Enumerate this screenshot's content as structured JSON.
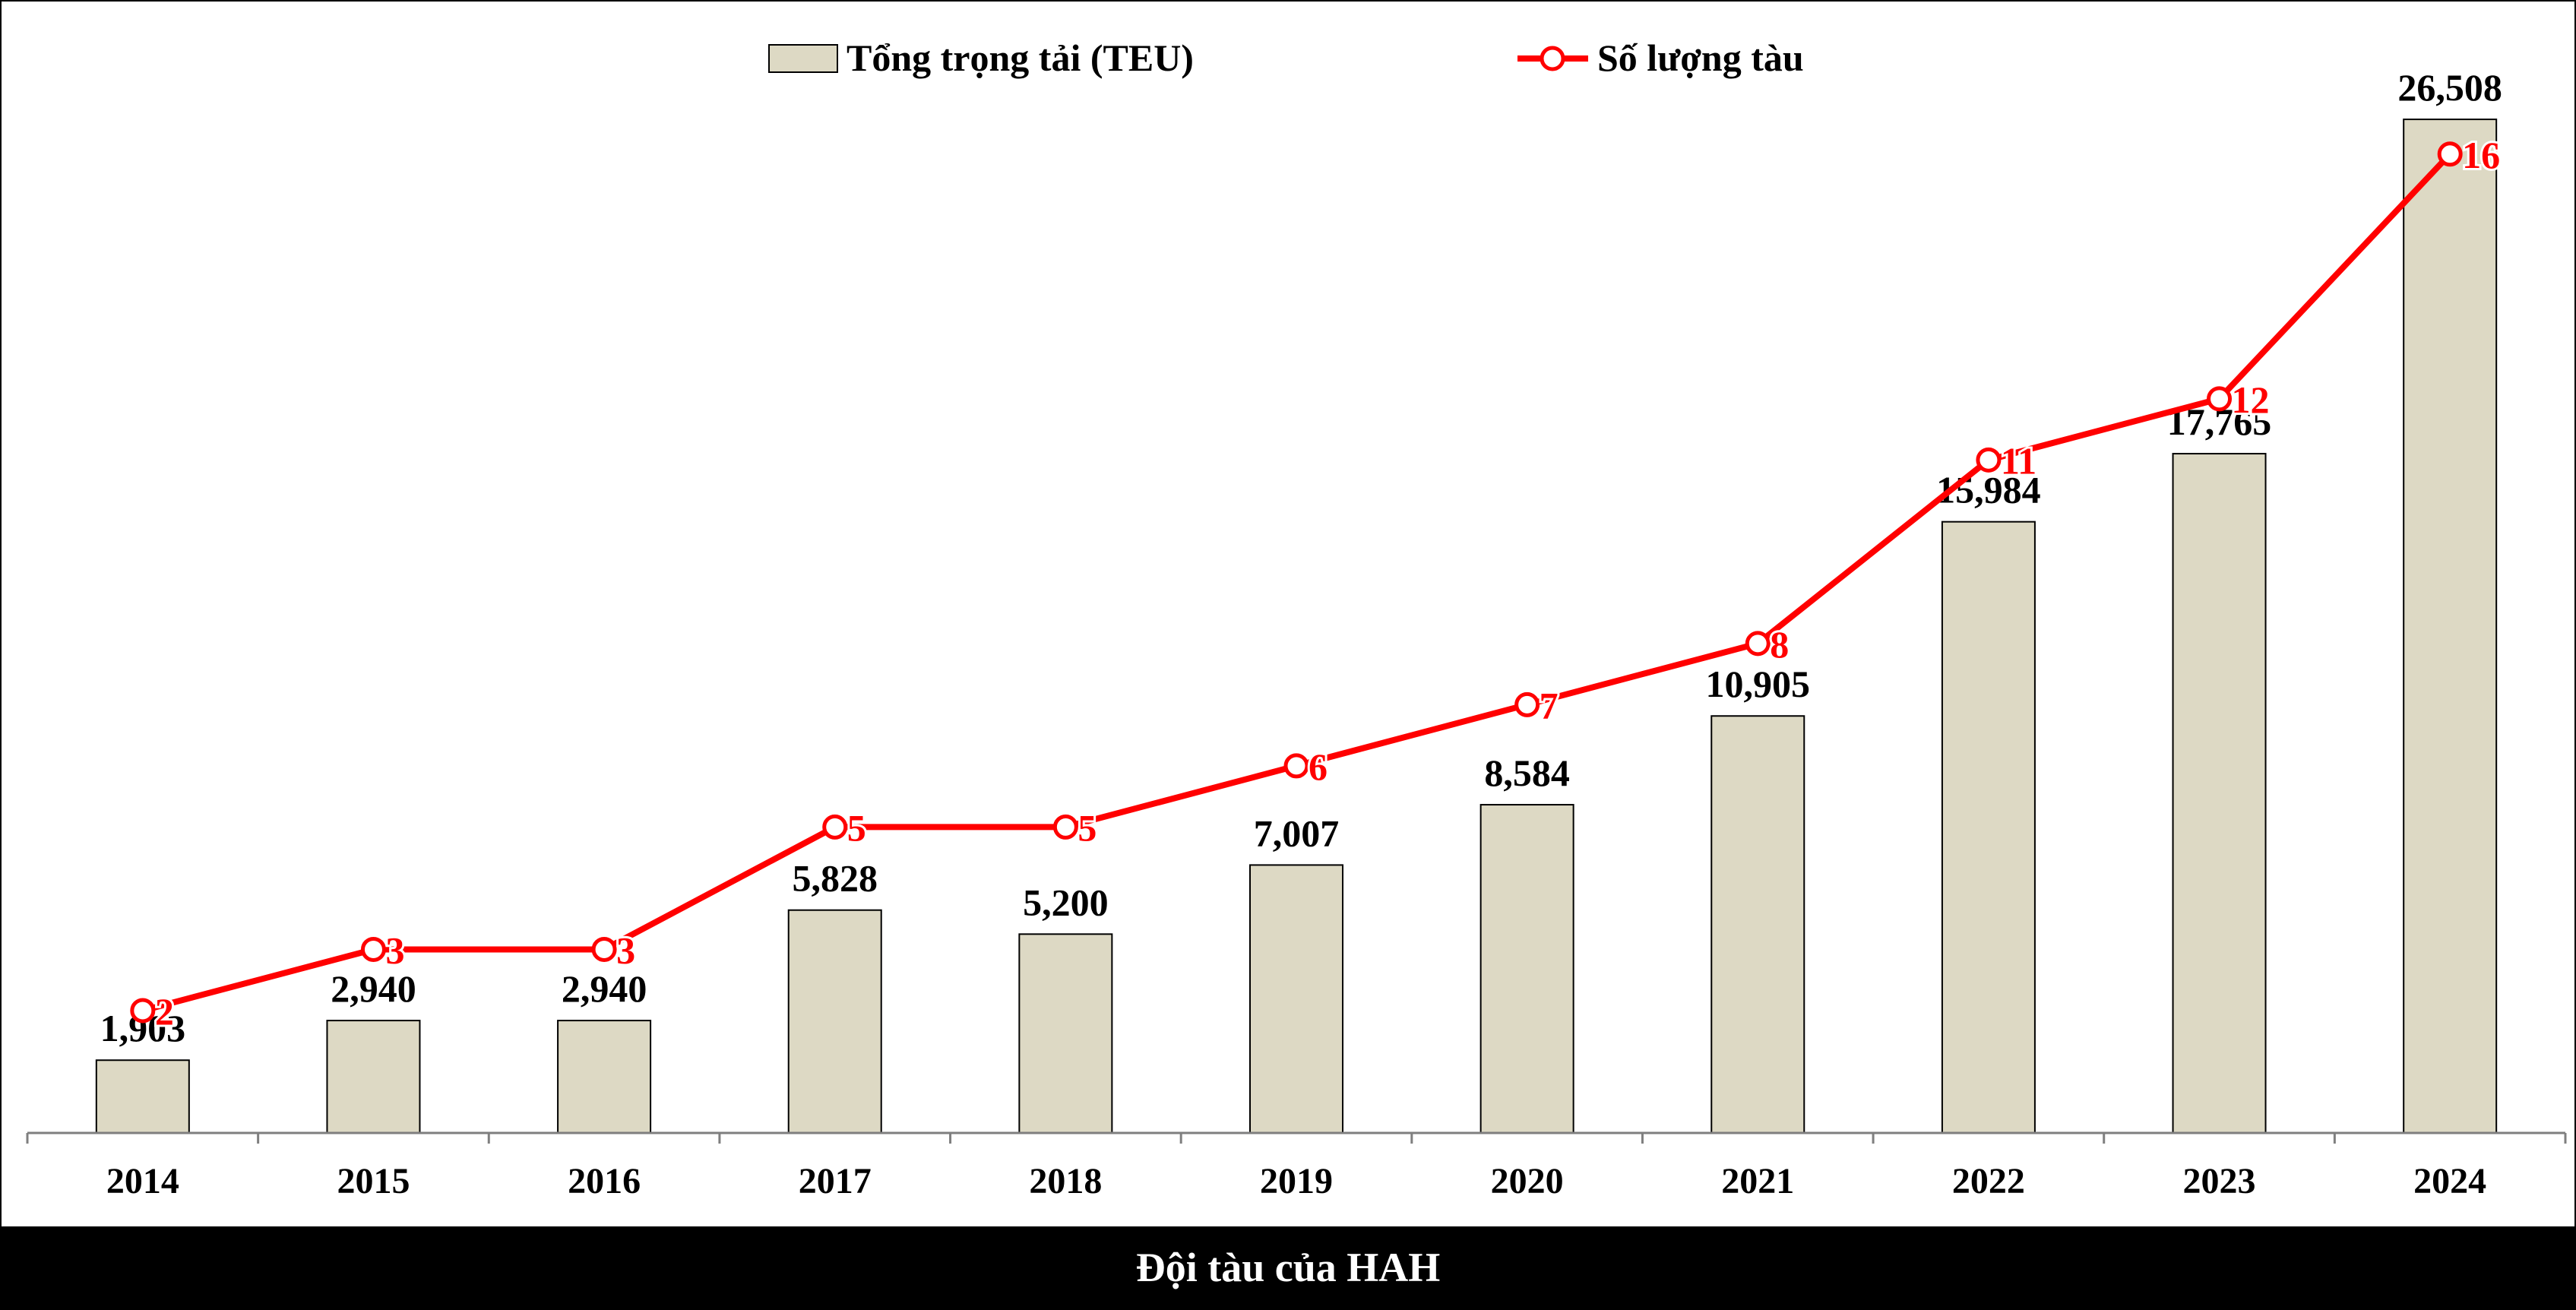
{
  "chart_data": {
    "type": "bar",
    "categories": [
      "2014",
      "2015",
      "2016",
      "2017",
      "2018",
      "2019",
      "2020",
      "2021",
      "2022",
      "2023",
      "2024"
    ],
    "series": [
      {
        "name": "Tổng trọng tải (TEU)",
        "type": "bar",
        "values": [
          1903,
          2940,
          2940,
          5828,
          5200,
          7007,
          8584,
          10905,
          15984,
          17765,
          26508
        ],
        "labels": [
          "1,903",
          "2,940",
          "2,940",
          "5,828",
          "5,200",
          "7,007",
          "8,584",
          "10,905",
          "15,984",
          "17,765",
          "26,508"
        ],
        "color": "#ddd9c4"
      },
      {
        "name": "Số lượng tàu",
        "type": "line",
        "values": [
          2,
          3,
          3,
          5,
          5,
          6,
          7,
          8,
          11,
          12,
          16
        ],
        "labels": [
          "2",
          "3",
          "3",
          "5",
          "5",
          "6",
          "7",
          "8",
          "11",
          "12",
          "16"
        ],
        "color": "#ff0000"
      }
    ],
    "y_left": {
      "min": 0,
      "max": 28000,
      "visible": false
    },
    "y_right": {
      "min": 0,
      "max": 17.5,
      "visible": false
    },
    "legend": "top-center",
    "grid": false
  },
  "footer": {
    "title": "Đội tàu của HAH"
  }
}
